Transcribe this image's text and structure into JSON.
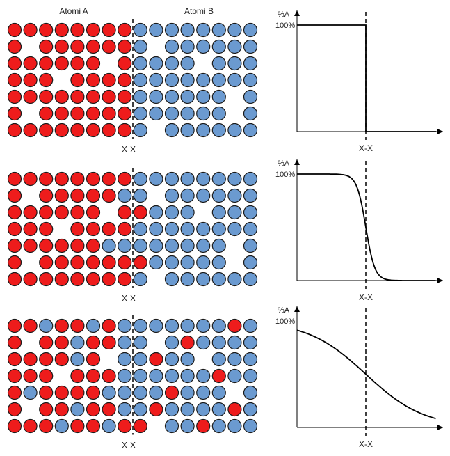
{
  "headers": {
    "left": "Atomi A",
    "right": "Atomi B"
  },
  "colors": {
    "atom_a": "#ee1c1c",
    "atom_b": "#6b9ad0",
    "outline": "#1a1a1a"
  },
  "cut_label": "X-X",
  "axis_label": "%A",
  "axis_tick": "100%",
  "panels": [
    {
      "grid": [
        "AAAAAAAABBBBBBBB",
        "A.AAAAAAB.BBBBBB",
        "AAAAAA.ABBBB.BBB",
        "AAA.AAAABBBBBBBB",
        "AAAAAAAABBBBBB.B",
        "A.AAAAAABBBBBB.B",
        "AAAAAAAAB.BBBBBB"
      ],
      "profile": "step"
    },
    {
      "grid": [
        "AAAAAAAABBBBBBBB",
        "A.AAAAABB.BBBBBB",
        "AAAAAA.AABBB.BBB",
        "AAA.AAAABBBBBBBB",
        "AAAAAABBBBBBBB.B",
        "A.AAAAAAABBBBB.B",
        "AAAAAAAAB.BBBBBB"
      ],
      "profile": "narrow"
    },
    {
      "grid": [
        "AABAABABBBBBBBAB",
        "A.AABAABB.BABBBB",
        "AAAABA.BBABB.BBB",
        "AAA.AAABBBBBBABB",
        "ABAAAABBBBABBB.B",
        "A.AABAABBABBBBAB",
        "AAABAABAA.BBABBB"
      ],
      "profile": "wide"
    }
  ]
}
